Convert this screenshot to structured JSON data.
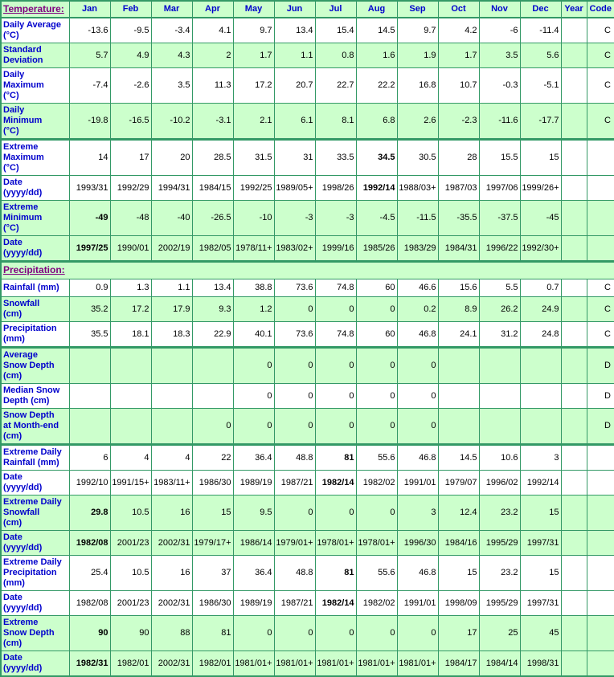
{
  "colors": {
    "table_green": "#ccffcc",
    "border_green": "#339966",
    "label_blue": "#0000cc",
    "section_purple": "#800080"
  },
  "header": {
    "temperature_label": "Temperature:",
    "months": [
      "Jan",
      "Feb",
      "Mar",
      "Apr",
      "May",
      "Jun",
      "Jul",
      "Aug",
      "Sep",
      "Oct",
      "Nov",
      "Dec"
    ],
    "year_label": "Year",
    "code_label": "Code"
  },
  "temperature_rows": [
    {
      "label": "Daily Average\n(°C)",
      "values": [
        "-13.6",
        "-9.5",
        "-3.4",
        "4.1",
        "9.7",
        "13.4",
        "15.4",
        "14.5",
        "9.7",
        "4.2",
        "-6",
        "-11.4"
      ],
      "year": "",
      "code": "C",
      "bold": -1,
      "date": false,
      "group_start": false
    },
    {
      "label": "Standard\nDeviation",
      "values": [
        "5.7",
        "4.9",
        "4.3",
        "2",
        "1.7",
        "1.1",
        "0.8",
        "1.6",
        "1.9",
        "1.7",
        "3.5",
        "5.6"
      ],
      "year": "",
      "code": "C",
      "bold": -1,
      "date": false,
      "group_start": false
    },
    {
      "label": "Daily\nMaximum\n(°C)",
      "values": [
        "-7.4",
        "-2.6",
        "3.5",
        "11.3",
        "17.2",
        "20.7",
        "22.7",
        "22.2",
        "16.8",
        "10.7",
        "-0.3",
        "-5.1"
      ],
      "year": "",
      "code": "C",
      "bold": -1,
      "date": false,
      "group_start": false
    },
    {
      "label": "Daily\nMinimum\n(°C)",
      "values": [
        "-19.8",
        "-16.5",
        "-10.2",
        "-3.1",
        "2.1",
        "6.1",
        "8.1",
        "6.8",
        "2.6",
        "-2.3",
        "-11.6",
        "-17.7"
      ],
      "year": "",
      "code": "C",
      "bold": -1,
      "date": false,
      "group_start": false
    },
    {
      "label": "Extreme\nMaximum\n(°C)",
      "values": [
        "14",
        "17",
        "20",
        "28.5",
        "31.5",
        "31",
        "33.5",
        "34.5",
        "30.5",
        "28",
        "15.5",
        "15"
      ],
      "year": "",
      "code": "",
      "bold": 7,
      "date": false,
      "group_start": true
    },
    {
      "label": "Date\n(yyyy/dd)",
      "values": [
        "1993/31",
        "1992/29",
        "1994/31",
        "1984/15",
        "1992/25",
        "1989/05+",
        "1998/26",
        "1992/14",
        "1988/03+",
        "1987/03",
        "1997/06",
        "1999/26+"
      ],
      "year": "",
      "code": "",
      "bold": 7,
      "date": true,
      "group_start": false
    },
    {
      "label": "Extreme\nMinimum\n(°C)",
      "values": [
        "-49",
        "-48",
        "-40",
        "-26.5",
        "-10",
        "-3",
        "-3",
        "-4.5",
        "-11.5",
        "-35.5",
        "-37.5",
        "-45"
      ],
      "year": "",
      "code": "",
      "bold": 0,
      "date": false,
      "group_start": false
    },
    {
      "label": "Date\n(yyyy/dd)",
      "values": [
        "1997/25",
        "1990/01",
        "2002/19",
        "1982/05",
        "1978/11+",
        "1983/02+",
        "1999/16",
        "1985/26",
        "1983/29",
        "1984/31",
        "1996/22",
        "1992/30+"
      ],
      "year": "",
      "code": "",
      "bold": 0,
      "date": true,
      "group_start": false
    }
  ],
  "precipitation_label": "Precipitation:",
  "precipitation_rows": [
    {
      "label": "Rainfall (mm)",
      "values": [
        "0.9",
        "1.3",
        "1.1",
        "13.4",
        "38.8",
        "73.6",
        "74.8",
        "60",
        "46.6",
        "15.6",
        "5.5",
        "0.7"
      ],
      "year": "",
      "code": "C",
      "bold": -1,
      "date": false,
      "group_start": false
    },
    {
      "label": "Snowfall\n(cm)",
      "values": [
        "35.2",
        "17.2",
        "17.9",
        "9.3",
        "1.2",
        "0",
        "0",
        "0",
        "0.2",
        "8.9",
        "26.2",
        "24.9"
      ],
      "year": "",
      "code": "C",
      "bold": -1,
      "date": false,
      "group_start": false
    },
    {
      "label": "Precipitation\n(mm)",
      "values": [
        "35.5",
        "18.1",
        "18.3",
        "22.9",
        "40.1",
        "73.6",
        "74.8",
        "60",
        "46.8",
        "24.1",
        "31.2",
        "24.8"
      ],
      "year": "",
      "code": "C",
      "bold": -1,
      "date": false,
      "group_start": false
    },
    {
      "label": "Average\nSnow Depth\n(cm)",
      "values": [
        "",
        "",
        "",
        "",
        "0",
        "0",
        "0",
        "0",
        "0",
        "",
        "",
        ""
      ],
      "year": "",
      "code": "D",
      "bold": -1,
      "date": false,
      "group_start": true
    },
    {
      "label": "Median Snow\nDepth (cm)",
      "values": [
        "",
        "",
        "",
        "",
        "0",
        "0",
        "0",
        "0",
        "0",
        "",
        "",
        ""
      ],
      "year": "",
      "code": "D",
      "bold": -1,
      "date": false,
      "group_start": false
    },
    {
      "label": "Snow Depth\nat Month-end\n(cm)",
      "values": [
        "",
        "",
        "",
        "0",
        "0",
        "0",
        "0",
        "0",
        "0",
        "",
        "",
        ""
      ],
      "year": "",
      "code": "D",
      "bold": -1,
      "date": false,
      "group_start": false
    },
    {
      "label": "Extreme Daily\nRainfall (mm)",
      "values": [
        "6",
        "4",
        "4",
        "22",
        "36.4",
        "48.8",
        "81",
        "55.6",
        "46.8",
        "14.5",
        "10.6",
        "3"
      ],
      "year": "",
      "code": "",
      "bold": 6,
      "date": false,
      "group_start": true
    },
    {
      "label": "Date\n(yyyy/dd)",
      "values": [
        "1992/10",
        "1991/15+",
        "1983/11+",
        "1986/30",
        "1989/19",
        "1987/21",
        "1982/14",
        "1982/02",
        "1991/01",
        "1979/07",
        "1996/02",
        "1992/14"
      ],
      "year": "",
      "code": "",
      "bold": 6,
      "date": true,
      "group_start": false
    },
    {
      "label": "Extreme Daily\nSnowfall\n(cm)",
      "values": [
        "29.8",
        "10.5",
        "16",
        "15",
        "9.5",
        "0",
        "0",
        "0",
        "3",
        "12.4",
        "23.2",
        "15"
      ],
      "year": "",
      "code": "",
      "bold": 0,
      "date": false,
      "group_start": false
    },
    {
      "label": "Date\n(yyyy/dd)",
      "values": [
        "1982/08",
        "2001/23",
        "2002/31",
        "1979/17+",
        "1986/14",
        "1979/01+",
        "1978/01+",
        "1978/01+",
        "1996/30",
        "1984/16",
        "1995/29",
        "1997/31"
      ],
      "year": "",
      "code": "",
      "bold": 0,
      "date": true,
      "group_start": false
    },
    {
      "label": "Extreme Daily\nPrecipitation\n(mm)",
      "values": [
        "25.4",
        "10.5",
        "16",
        "37",
        "36.4",
        "48.8",
        "81",
        "55.6",
        "46.8",
        "15",
        "23.2",
        "15"
      ],
      "year": "",
      "code": "",
      "bold": 6,
      "date": false,
      "group_start": false
    },
    {
      "label": "Date\n(yyyy/dd)",
      "values": [
        "1982/08",
        "2001/23",
        "2002/31",
        "1986/30",
        "1989/19",
        "1987/21",
        "1982/14",
        "1982/02",
        "1991/01",
        "1998/09",
        "1995/29",
        "1997/31"
      ],
      "year": "",
      "code": "",
      "bold": 6,
      "date": true,
      "group_start": false
    },
    {
      "label": "Extreme\nSnow Depth\n(cm)",
      "values": [
        "90",
        "90",
        "88",
        "81",
        "0",
        "0",
        "0",
        "0",
        "0",
        "17",
        "25",
        "45"
      ],
      "year": "",
      "code": "",
      "bold": 0,
      "date": false,
      "group_start": false
    },
    {
      "label": "Date\n(yyyy/dd)",
      "values": [
        "1982/31",
        "1982/01",
        "2002/31",
        "1982/01",
        "1981/01+",
        "1981/01+",
        "1981/01+",
        "1981/01+",
        "1981/01+",
        "1984/17",
        "1984/14",
        "1998/31"
      ],
      "year": "",
      "code": "",
      "bold": 0,
      "date": true,
      "group_start": false
    }
  ]
}
